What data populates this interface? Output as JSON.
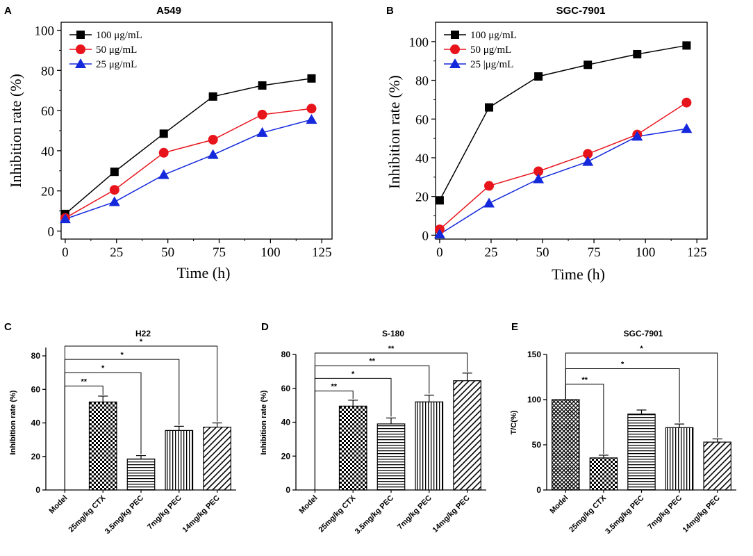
{
  "chart_data": [
    {
      "panel_label": "A",
      "type": "line",
      "title": "A549",
      "xlabel": "Time (h)",
      "ylabel": "Inhibition rate (%)",
      "xlim": [
        -2,
        130
      ],
      "ylim": [
        -4,
        104
      ],
      "xticks": [
        "0",
        "25",
        "50",
        "75",
        "100",
        "125"
      ],
      "yticks": [
        "0",
        "20",
        "40",
        "60",
        "80",
        "100"
      ],
      "x": [
        0,
        24,
        48,
        72,
        96,
        120
      ],
      "series": [
        {
          "name": "100  μg/mL",
          "marker": "square",
          "color": "#000000",
          "values": [
            8.5,
            29.5,
            48.5,
            67,
            72.5,
            76
          ]
        },
        {
          "name": "50 μg/mL",
          "marker": "circle",
          "color": "#e8141c",
          "values": [
            6.5,
            20.5,
            39,
            45.5,
            58,
            61
          ]
        },
        {
          "name": "25 μg/mL",
          "marker": "triangle",
          "color": "#1428dc",
          "values": [
            6,
            14.5,
            28,
            38,
            49,
            55.5
          ]
        }
      ]
    },
    {
      "panel_label": "B",
      "type": "line",
      "title": "SGC-7901",
      "xlabel": "Time (h)",
      "ylabel": "Inhibition rate (%)",
      "xlim": [
        -2,
        130
      ],
      "ylim": [
        -2,
        110
      ],
      "xticks": [
        "0",
        "25",
        "50",
        "75",
        "100",
        "125"
      ],
      "yticks": [
        "0",
        "20",
        "40",
        "60",
        "80",
        "100"
      ],
      "x": [
        0,
        24,
        48,
        72,
        96,
        120
      ],
      "series": [
        {
          "name": "100 μg/mL",
          "marker": "square",
          "color": "#000000",
          "values": [
            18,
            66,
            82,
            88,
            93.5,
            98
          ]
        },
        {
          "name": "50  μg/mL",
          "marker": "circle",
          "color": "#e8141c",
          "values": [
            3,
            25.5,
            33,
            42,
            52,
            68.5
          ]
        },
        {
          "name": "25 |μg/mL",
          "marker": "triangle",
          "color": "#1428dc",
          "values": [
            0.5,
            16.5,
            29,
            38,
            51,
            55
          ]
        }
      ]
    },
    {
      "panel_label": "C",
      "type": "bar",
      "title": "H22",
      "ylabel": "Inhibition rate  (%)",
      "ylim": [
        0,
        85
      ],
      "yticks": [
        "0",
        "20",
        "40",
        "60",
        "80"
      ],
      "categories": [
        "Model",
        "25mg/kg CTX",
        "3.5mg/kg PEC",
        "7mg/kg PEC",
        "14mg/kg PEC"
      ],
      "values": [
        0,
        52.5,
        18.5,
        35.5,
        37.5
      ],
      "errors": [
        0,
        3.5,
        2,
        2.5,
        2.5
      ],
      "patterns": [
        "none",
        "checker",
        "hlines",
        "vlines",
        "diag"
      ],
      "significance": [
        {
          "to": 1,
          "label": "**"
        },
        {
          "to": 2,
          "label": "*"
        },
        {
          "to": 3,
          "label": "*"
        },
        {
          "to": 4,
          "label": "*"
        }
      ]
    },
    {
      "panel_label": "D",
      "type": "bar",
      "title": "S-180",
      "ylabel": "Inhibition rate (%)",
      "ylim": [
        0,
        80
      ],
      "yticks": [
        "0",
        "20",
        "40",
        "60",
        "80"
      ],
      "categories": [
        "Model",
        "25mg/kg CTX",
        "3.5mg/kg PEC",
        "7mg/kg PEC",
        "14mg/kg PEC"
      ],
      "values": [
        0,
        49.5,
        39,
        52,
        64.5
      ],
      "errors": [
        0,
        3.5,
        3.5,
        4,
        4.5
      ],
      "patterns": [
        "none",
        "checker",
        "hlines",
        "vlines",
        "diag"
      ],
      "significance": [
        {
          "to": 1,
          "label": "**"
        },
        {
          "to": 2,
          "label": "*"
        },
        {
          "to": 3,
          "label": "**"
        },
        {
          "to": 4,
          "label": "**"
        }
      ]
    },
    {
      "panel_label": "E",
      "type": "bar",
      "title": "SGC-7901",
      "ylabel": "T/C(%)",
      "ylim": [
        0,
        150
      ],
      "yticks": [
        "0",
        "50",
        "100",
        "150"
      ],
      "categories": [
        "Model",
        "25mg/kg CTX",
        "3.5mg/kg PEC",
        "7mg/kg PEC",
        "14mg/kg PEC"
      ],
      "values": [
        100,
        35.5,
        84,
        69,
        53
      ],
      "errors": [
        0,
        3,
        4.5,
        4,
        3.5
      ],
      "patterns": [
        "cross",
        "checker",
        "hlines",
        "vlines",
        "diag"
      ],
      "significance": [
        {
          "to": 1,
          "label": "**"
        },
        {
          "to": 3,
          "label": "*"
        },
        {
          "to": 4,
          "label": "*"
        }
      ]
    }
  ]
}
